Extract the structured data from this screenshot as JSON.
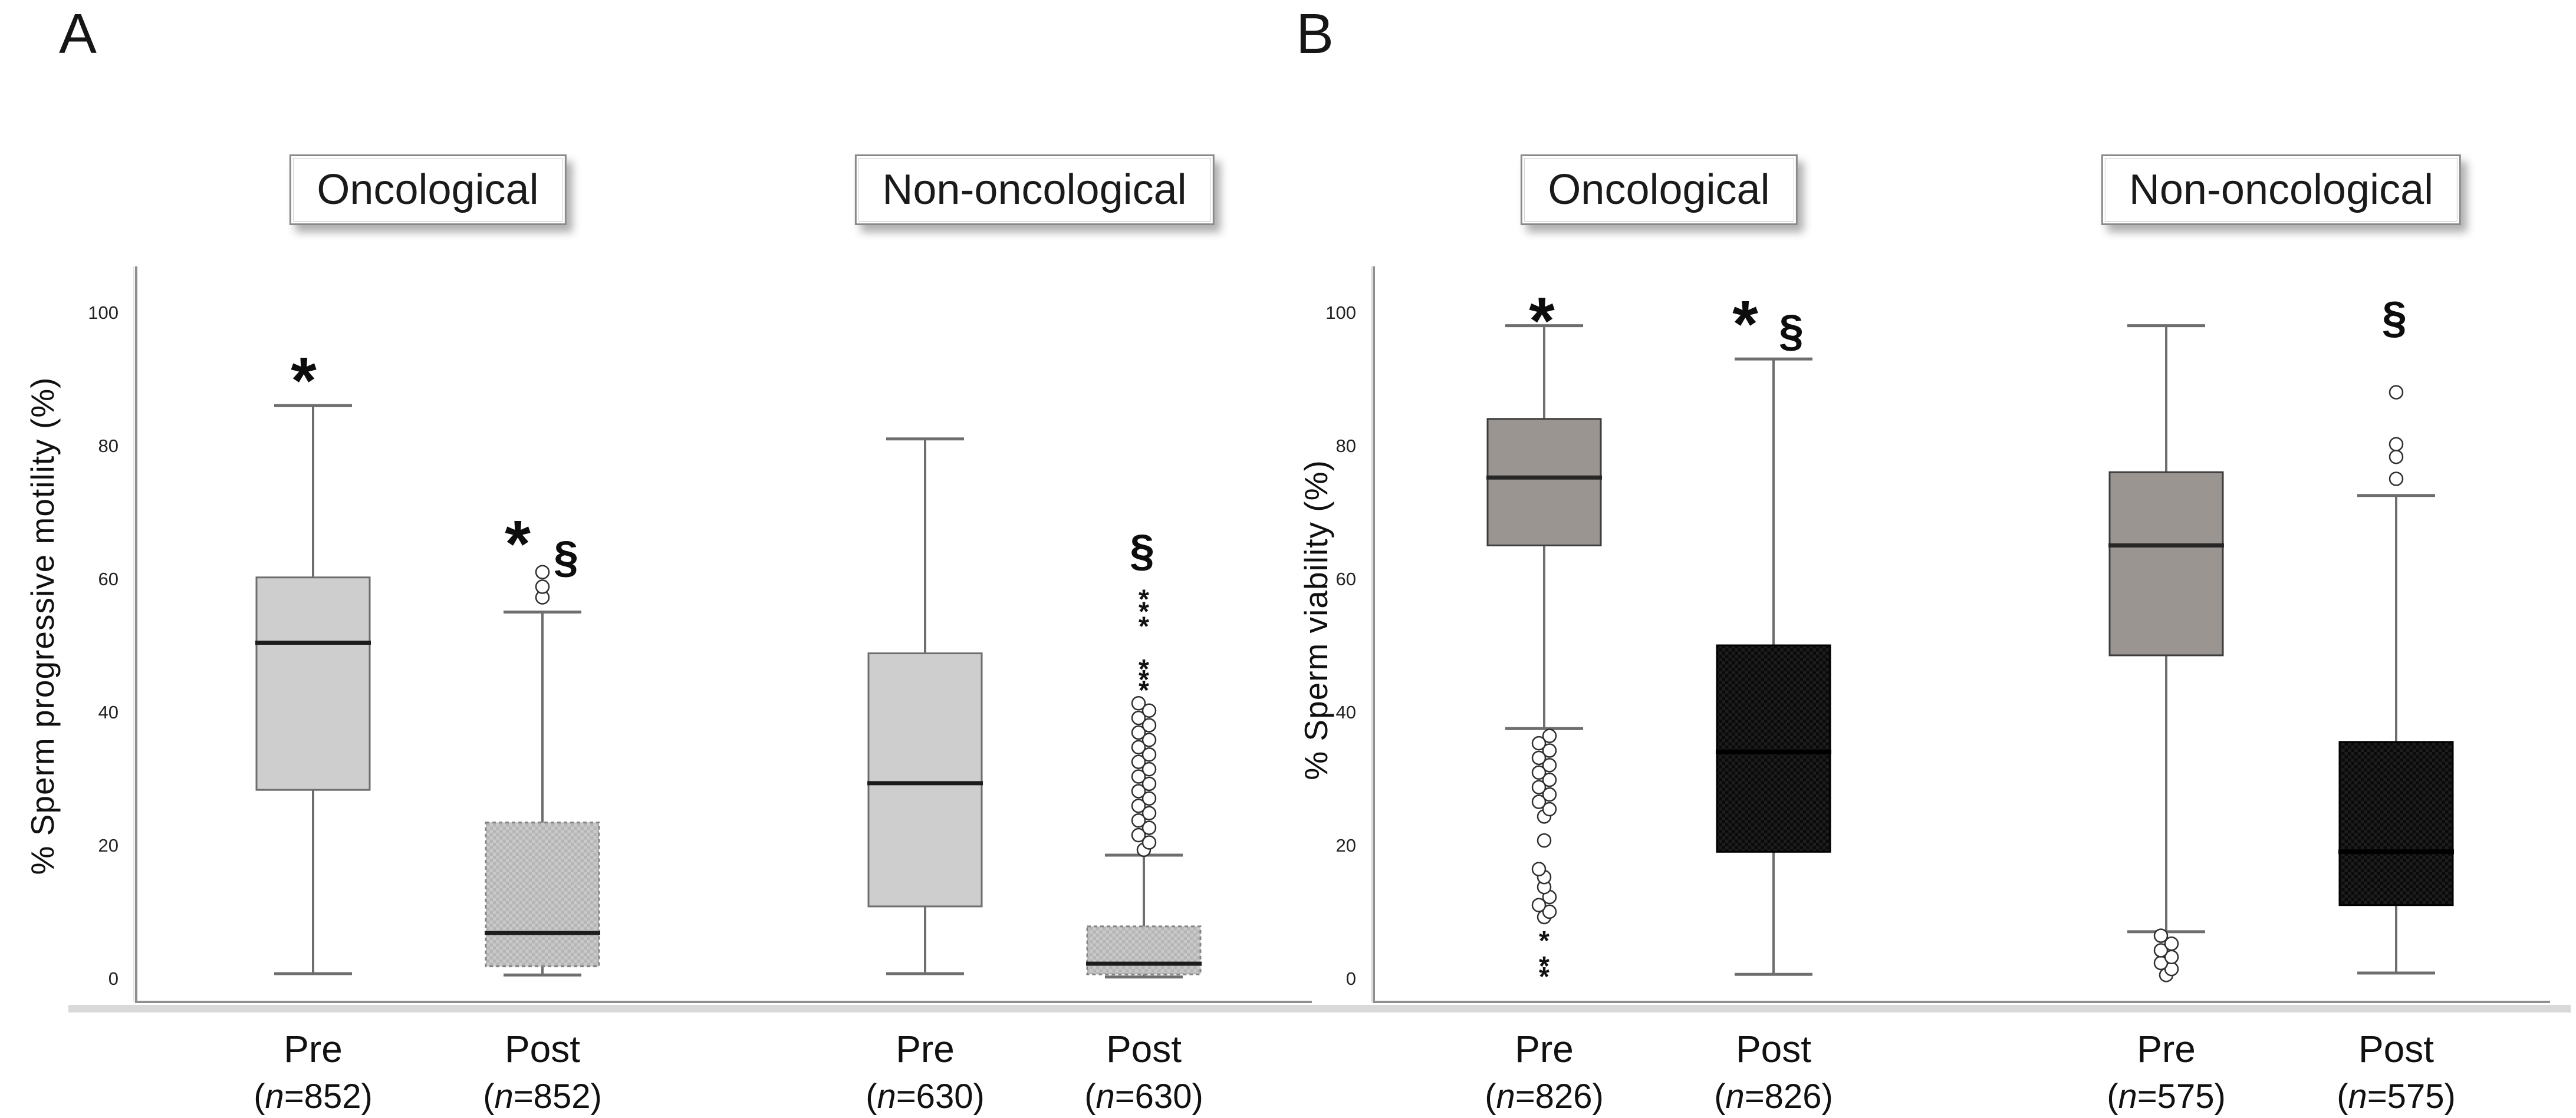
{
  "figure": {
    "type": "pre-post-boxplot-figure",
    "background": "#ffffff"
  },
  "colors": {
    "box_light_gray": "#cecece",
    "box_hatch_gray_a": "#c9c9c9",
    "box_hatch_gray_b": "#b5b5b5",
    "box_warm_gray": "#9b9592",
    "box_black_a": "#1d1d1d",
    "box_black_b": "#0a0a0a",
    "whisker": "#6e6e6e",
    "axis": "#8f8f8f",
    "axis_shadow": "#d9d9d9",
    "text": "#161616"
  },
  "chart_data": [
    {
      "type": "boxplot",
      "panel_letter": "A",
      "ylabel": "% Sperm progressive motility (%)",
      "ylim": [
        0,
        100
      ],
      "yticks": [
        0,
        20,
        40,
        60,
        80,
        100
      ],
      "legend_position": "none",
      "grid": false,
      "groups": [
        {
          "title": "Oncological",
          "columns": [
            {
              "label": "Pre",
              "n_label": "(n=852)",
              "style": "gray-solid",
              "whisker_low": 0.7,
              "q1": 28.3,
              "median": 50.4,
              "q3": 60.2,
              "whisker_high": 86,
              "outlier_circles": [],
              "outlier_stars": [],
              "annotations": [
                {
                  "symbol": "*",
                  "value": 91,
                  "dx": -16
                }
              ]
            },
            {
              "label": "Post",
              "n_label": "(n=852)",
              "style": "gray-hatch",
              "whisker_low": 0.5,
              "q1": 1.8,
              "median": 6.8,
              "q3": 23.4,
              "whisker_high": 55,
              "outlier_circles": [
                57.2,
                58.8,
                61
              ],
              "outlier_stars": [],
              "annotations": [
                {
                  "symbol": "*",
                  "value": 66.5,
                  "dx": -42
                },
                {
                  "symbol": "§",
                  "value": 63,
                  "dx": 40
                }
              ]
            }
          ]
        },
        {
          "title": "Non-oncological",
          "columns": [
            {
              "label": "Pre",
              "n_label": "(n=630)",
              "style": "gray-solid",
              "whisker_low": 0.7,
              "q1": 10.8,
              "median": 29.3,
              "q3": 48.8,
              "whisker_high": 81,
              "outlier_circles": [],
              "outlier_stars": [],
              "annotations": []
            },
            {
              "label": "Post",
              "n_label": "(n=630)",
              "style": "gray-hatch",
              "whisker_low": 0.2,
              "q1": 0.6,
              "median": 2.2,
              "q3": 7.8,
              "whisker_high": 18.5,
              "outlier_circles": [
                19.3,
                20.4,
                21.5,
                22.6,
                23.7,
                24.8,
                25.9,
                27.0,
                28.1,
                29.2,
                30.3,
                31.4,
                32.5,
                33.6,
                34.7,
                35.8,
                36.9,
                38.0,
                39.1,
                40.2,
                41.3
              ],
              "outlier_stars": [
                43.8,
                45.4,
                47.0,
                53.4,
                55.6,
                57.5
              ],
              "annotations": [
                {
                  "symbol": "§",
                  "value": 64,
                  "dx": -3
                }
              ]
            }
          ]
        }
      ]
    },
    {
      "type": "boxplot",
      "panel_letter": "B",
      "ylabel": "% Sperm viability (%)",
      "ylim": [
        0,
        100
      ],
      "yticks": [
        0,
        20,
        40,
        60,
        80,
        100
      ],
      "legend_position": "none",
      "grid": false,
      "groups": [
        {
          "title": "Oncological",
          "columns": [
            {
              "label": "Pre",
              "n_label": "(n=826)",
              "style": "warm-gray-solid",
              "whisker_low": 37.5,
              "q1": 65,
              "median": 75.2,
              "q3": 84,
              "whisker_high": 98,
              "outlier_circles": [
                9.2,
                10.0,
                11.0,
                12.2,
                13.7,
                15.2,
                16.4,
                20.7,
                24.3,
                25.4,
                26.5,
                27.6,
                28.7,
                29.8,
                30.9,
                32.0,
                33.1,
                34.2,
                35.3,
                36.4
              ],
              "outlier_stars": [
                6.2,
                2.4,
                0.8
              ],
              "annotations": [
                {
                  "symbol": "*",
                  "value": 100,
                  "dx": -4
                }
              ]
            },
            {
              "label": "Post",
              "n_label": "(n=826)",
              "style": "black-hatch",
              "whisker_low": 0.6,
              "q1": 19,
              "median": 34,
              "q3": 50,
              "whisker_high": 93,
              "outlier_circles": [],
              "outlier_stars": [],
              "annotations": [
                {
                  "symbol": "*",
                  "value": 99.5,
                  "dx": -48
                },
                {
                  "symbol": "§",
                  "value": 97,
                  "dx": 30
                }
              ]
            }
          ]
        },
        {
          "title": "Non-oncological",
          "columns": [
            {
              "label": "Pre",
              "n_label": "(n=575)",
              "style": "warm-gray-solid",
              "whisker_low": 7,
              "q1": 48.5,
              "median": 65,
              "q3": 76,
              "whisker_high": 98,
              "outlier_circles": [
                6.4,
                5.2,
                4.2,
                3.2,
                2.3,
                1.4,
                0.5
              ],
              "outlier_stars": [],
              "annotations": []
            },
            {
              "label": "Post",
              "n_label": "(n=575)",
              "style": "black-hatch",
              "whisker_low": 0.8,
              "q1": 11,
              "median": 19,
              "q3": 35.5,
              "whisker_high": 72.5,
              "outlier_circles": [
                88,
                80.2,
                78.3,
                75
              ],
              "outlier_stars": [],
              "annotations": [
                {
                  "symbol": "§",
                  "value": 99,
                  "dx": -3
                }
              ]
            }
          ]
        }
      ]
    }
  ]
}
